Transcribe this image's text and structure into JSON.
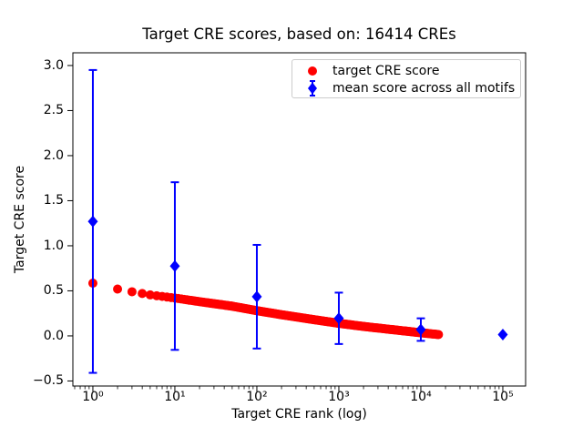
{
  "title": "Target CRE scores, based on: 16414 CREs",
  "chart_data": {
    "type": "scatter",
    "title": "Target CRE scores, based on: 16414 CREs",
    "xlabel": "Target CRE rank (log)",
    "ylabel": "Target CRE score",
    "x_scale": "log",
    "xlim_log10": [
      -0.244,
      5.278
    ],
    "ylim": [
      -0.556,
      3.141
    ],
    "grid": false,
    "x_ticks": [
      1,
      10,
      100,
      1000,
      10000,
      100000
    ],
    "x_ticklabels": [
      "10⁰",
      "10¹",
      "10²",
      "10³",
      "10⁴",
      "10⁵"
    ],
    "y_ticks": [
      3.0,
      2.5,
      2.0,
      1.5,
      1.0,
      0.5,
      0.0,
      -0.5
    ],
    "y_ticklabels": [
      "3.0",
      "2.5",
      "2.0",
      "1.5",
      "1.0",
      "0.5",
      "0.0",
      "−0.5"
    ],
    "legend": {
      "position": "upper right",
      "entries": [
        {
          "label": "target CRE score",
          "marker": "circle",
          "color": "#ff0000"
        },
        {
          "label": "mean score across all motifs",
          "marker": "diamond-errorbar",
          "color": "#0000ff"
        }
      ]
    },
    "series": [
      {
        "name": "target CRE score",
        "marker": "circle",
        "color": "#ff0000",
        "n_points": 16414,
        "rank_range": [
          1,
          16414
        ],
        "curve_log10rank_vs_score": [
          [
            0.0,
            0.585
          ],
          [
            0.301,
            0.52
          ],
          [
            0.477,
            0.49
          ],
          [
            0.699,
            0.455
          ],
          [
            1.0,
            0.42
          ],
          [
            1.301,
            0.38
          ],
          [
            1.699,
            0.33
          ],
          [
            2.0,
            0.28
          ],
          [
            2.301,
            0.235
          ],
          [
            2.699,
            0.18
          ],
          [
            3.0,
            0.14
          ],
          [
            3.301,
            0.105
          ],
          [
            3.699,
            0.065
          ],
          [
            4.0,
            0.035
          ],
          [
            4.215,
            0.015
          ]
        ]
      },
      {
        "name": "mean score across all motifs",
        "marker": "diamond",
        "color": "#0000ff",
        "points": [
          {
            "x": 1,
            "mean": 1.27,
            "err": 1.68
          },
          {
            "x": 10,
            "mean": 0.775,
            "err": 0.93
          },
          {
            "x": 100,
            "mean": 0.435,
            "err": 0.575
          },
          {
            "x": 1000,
            "mean": 0.195,
            "err": 0.285
          },
          {
            "x": 10000,
            "mean": 0.07,
            "err": 0.125
          },
          {
            "x": 100000,
            "mean": 0.015,
            "err": 0.0
          }
        ]
      }
    ]
  }
}
